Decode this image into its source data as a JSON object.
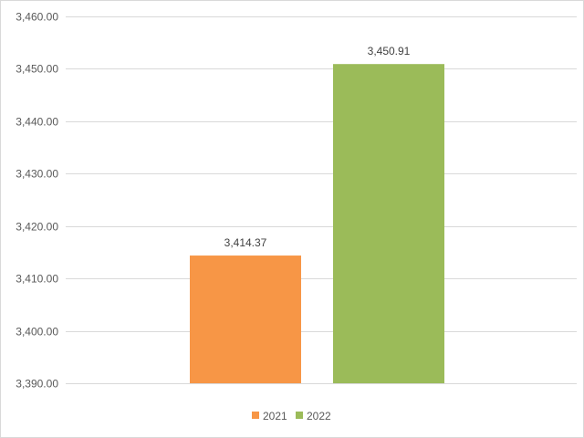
{
  "chart_data": {
    "type": "bar",
    "categories": [
      ""
    ],
    "series": [
      {
        "name": "2021",
        "values": [
          3414.37
        ],
        "color": "#f79646",
        "label": "3,414.37"
      },
      {
        "name": "2022",
        "values": [
          3450.91
        ],
        "color": "#9bbb59",
        "label": "3,450.91"
      }
    ],
    "ylim": [
      3390,
      3460
    ],
    "yticks": [
      "3,390.00",
      "3,400.00",
      "3,410.00",
      "3,420.00",
      "3,430.00",
      "3,440.00",
      "3,450.00",
      "3,460.00"
    ],
    "ytick_values": [
      3390,
      3400,
      3410,
      3420,
      3430,
      3440,
      3450,
      3460
    ],
    "grid": true,
    "gridline_color": "#d9d9d9",
    "legend_position": "bottom",
    "title": "",
    "xlabel": "",
    "ylabel": ""
  }
}
